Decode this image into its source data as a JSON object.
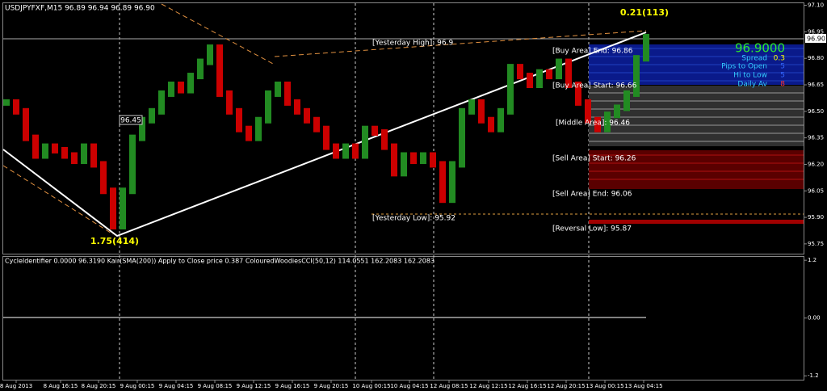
{
  "window": {
    "header": "USDJPYFXF,M15  96.89 96.94 96.89 96.90",
    "low_label": "1.75(414)",
    "high_label": "0.21(113)",
    "box_label": "96.45",
    "levels": [
      "[Yesterday High]: 96.9",
      "[Buy Area] End: 96.86",
      "[Buy Area] Start: 96.66",
      "[Middle Area]: 96.46",
      "[Sell Area] Start: 96.26",
      "[Sell Area] End: 96.06",
      "[Yesterday Low]: 95.92",
      "[Reversal Low]: 95.87"
    ],
    "price_big": "96.9000",
    "info_labels": [
      "Spread",
      "Pips to Open",
      "Hi to Low",
      "Daily Av"
    ],
    "info_values": [
      "0.3",
      "5",
      "5",
      "8"
    ],
    "current_price_label": "96.90",
    "indicator_header": "CycleIdentifier 0.0000 96.3190  Kair(SMA(200)) Apply to Close price 0.387  ColouredWoodiesCCI(50,12) 114.0551 162.2083 162.2083",
    "x_labels": [
      "8 Aug 2013",
      "8 Aug 16:15",
      "8 Aug 20:15",
      "9 Aug 00:15",
      "9 Aug 04:15",
      "9 Aug 08:15",
      "9 Aug 12:15",
      "9 Aug 16:15",
      "9 Aug 20:15",
      "10 Aug 00:15",
      "10 Aug 04:15",
      "12 Aug 08:15",
      "12 Aug 12:15",
      "12 Aug 16:15",
      "12 Aug 20:15",
      "13 Aug 00:15",
      "13 Aug 04:15"
    ]
  },
  "chart_data": {
    "type": "price-bars",
    "up_color": "#228b22",
    "down_color": "#cc0000",
    "values": [
      96.55,
      96.5,
      96.35,
      96.25,
      96.3,
      96.28,
      96.25,
      96.22,
      96.3,
      96.2,
      96.05,
      95.85,
      96.05,
      96.35,
      96.45,
      96.5,
      96.6,
      96.65,
      96.62,
      96.7,
      96.78,
      96.86,
      96.6,
      96.5,
      96.4,
      96.35,
      96.45,
      96.6,
      96.65,
      96.55,
      96.5,
      96.45,
      96.4,
      96.3,
      96.25,
      96.3,
      96.25,
      96.4,
      96.38,
      96.3,
      96.15,
      96.25,
      96.22,
      96.25,
      96.2,
      96.0,
      96.2,
      96.5,
      96.55,
      96.45,
      96.4,
      96.5,
      96.75,
      96.7,
      96.65,
      96.72,
      96.7,
      96.78,
      96.65,
      96.55,
      96.45,
      96.4,
      96.48,
      96.52,
      96.6,
      96.8,
      96.92
    ],
    "ylim": [
      95.69,
      97.13
    ],
    "yticks": [
      {
        "value": 97.1,
        "label": "97.10"
      },
      96.95,
      {
        "value": 96.8,
        "label": "96.80"
      },
      96.65,
      {
        "value": 96.5,
        "label": "96.50"
      },
      96.35,
      {
        "value": 96.2,
        "label": "96.20"
      },
      96.05,
      {
        "value": 95.9,
        "label": "95.90"
      },
      95.75
    ],
    "lower_ylim": [
      -1.28,
      1.27
    ],
    "lower_yticks": [
      1.2,
      {
        "value": 0,
        "label": "0.00"
      },
      -1.2
    ]
  }
}
